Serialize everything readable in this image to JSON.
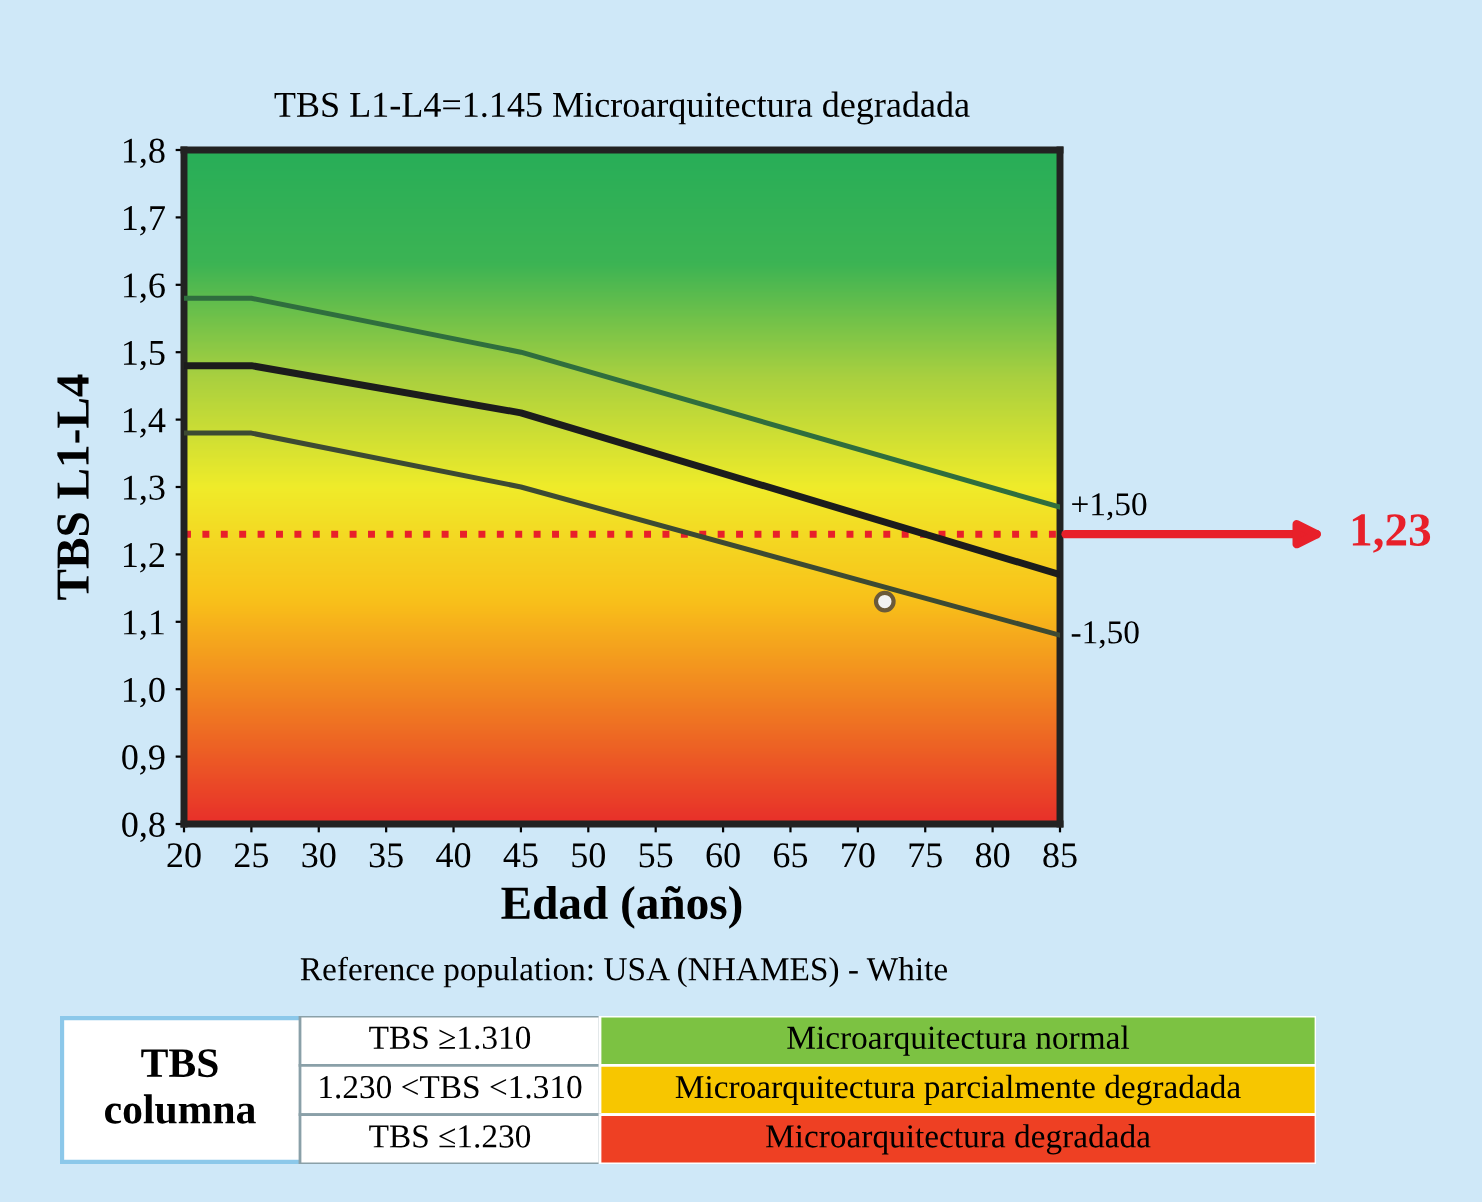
{
  "chart_data": {
    "type": "line",
    "title": "TBS L1-L4=1.145 Microarquitectura degradada",
    "xlabel": "Edad (años)",
    "ylabel": "TBS L1-L4",
    "series": [
      {
        "name": "+1,50",
        "color": "#2f6e3e",
        "x": [
          20,
          25,
          45,
          85
        ],
        "values": [
          1.58,
          1.58,
          1.5,
          1.27
        ]
      },
      {
        "color": "#1c1c1c",
        "x": [
          20,
          25,
          45,
          85
        ],
        "values": [
          1.48,
          1.48,
          1.41,
          1.17
        ]
      },
      {
        "name": "-1,50",
        "color": "#3d4a33",
        "x": [
          20,
          25,
          45,
          85
        ],
        "values": [
          1.38,
          1.38,
          1.3,
          1.08
        ]
      },
      {
        "type": "scatter",
        "color": "#f2f2f2",
        "marker": "circle",
        "x": [
          72
        ],
        "values": [
          1.13
        ]
      }
    ],
    "xlim": [
      20,
      85
    ],
    "ylim": [
      0.8,
      1.8
    ],
    "xticks": [
      20,
      25,
      30,
      35,
      40,
      45,
      50,
      55,
      60,
      65,
      70,
      75,
      80,
      85
    ],
    "yticks": [
      {
        "value": 0.8,
        "label": "0,8"
      },
      {
        "value": 0.9,
        "label": "0,9"
      },
      {
        "value": 1.0,
        "label": "1,0"
      },
      {
        "value": 1.1,
        "label": "1,1"
      },
      {
        "value": 1.2,
        "label": "1,2"
      },
      {
        "value": 1.3,
        "label": "1,3"
      },
      {
        "value": 1.4,
        "label": "1,4"
      },
      {
        "value": 1.5,
        "label": "1,5"
      },
      {
        "value": 1.6,
        "label": "1,6"
      },
      {
        "value": 1.7,
        "label": "1,7"
      },
      {
        "value": 1.8,
        "label": "1,8"
      }
    ],
    "ref_lines": [
      {
        "axis": "y",
        "value": 1.23,
        "label": "1,23",
        "color": "#e8202a",
        "line_style": "dotted"
      }
    ],
    "annotations": [
      "Reference population: USA (NHAMES) - White",
      "TBS\ncolumna",
      "TBS ≥1.310",
      "Microarquitectura normal",
      "1.230 <TBS <1.310",
      "Microarquitectura parcialmente degradada",
      "TBS ≤1.230",
      "Microarquitectura degradada"
    ],
    "grid": false,
    "legend": false
  }
}
